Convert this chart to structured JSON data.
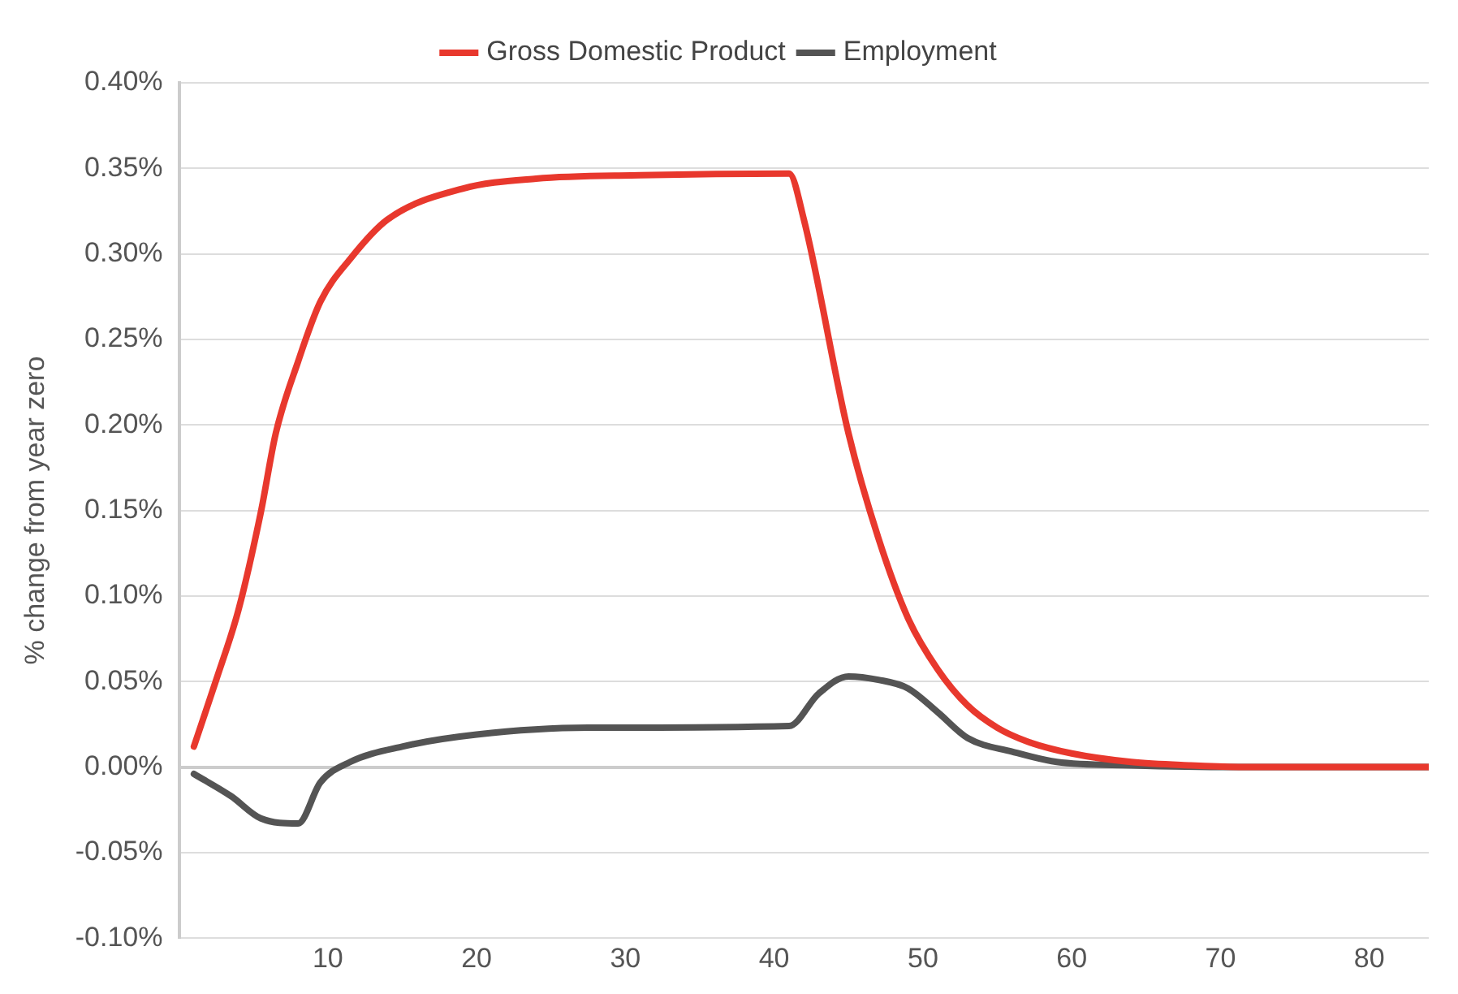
{
  "chart_data": {
    "type": "line",
    "ylabel": "% change from year zero",
    "xlim": [
      0,
      84
    ],
    "xticks": [
      10,
      20,
      30,
      40,
      50,
      60,
      70,
      80
    ],
    "ylim": [
      -0.1,
      0.4
    ],
    "yticks": [
      {
        "value": -0.1,
        "label": "-0.10%"
      },
      {
        "value": -0.05,
        "label": "-0.05%"
      },
      {
        "value": 0,
        "label": "0.00%"
      },
      {
        "value": 0.05,
        "label": "0.05%"
      },
      {
        "value": 0.1,
        "label": "0.10%"
      },
      {
        "value": 0.15,
        "label": "0.15%"
      },
      {
        "value": 0.2,
        "label": "0.20%"
      },
      {
        "value": 0.25,
        "label": "0.25%"
      },
      {
        "value": 0.3,
        "label": "0.30%"
      },
      {
        "value": 0.35,
        "label": "0.35%"
      },
      {
        "value": 0.4,
        "label": "0.40%"
      }
    ],
    "grid": "y",
    "legend": "top",
    "marker": "none",
    "line_style": "solid",
    "series": [
      {
        "name": "Gross Domestic Product",
        "color": "#e8382d",
        "x": [
          1,
          2.5,
          4,
          5.5,
          6.5,
          8,
          9.5,
          11.5,
          14,
          19,
          24,
          31,
          41,
          42,
          45,
          47,
          49,
          51,
          53,
          55,
          57,
          60,
          64,
          68,
          72,
          84
        ],
        "values": [
          0.012,
          0.051,
          0.092,
          0.149,
          0.195,
          0.237,
          0.272,
          0.297,
          0.32,
          0.338,
          0.344,
          0.346,
          0.347,
          0.32,
          0.195,
          0.134,
          0.087,
          0.057,
          0.036,
          0.023,
          0.015,
          0.008,
          0.003,
          0.001,
          0,
          0
        ]
      },
      {
        "name": "Employment",
        "color": "#545454",
        "x": [
          1,
          3.5,
          5.5,
          8,
          9.5,
          11.5,
          15,
          20,
          27.5,
          41,
          43,
          45,
          47,
          49,
          51,
          53,
          56,
          59,
          64,
          71,
          84
        ],
        "values": [
          -0.004,
          -0.017,
          -0.03,
          -0.033,
          -0.009,
          0.003,
          0.012,
          0.019,
          0.023,
          0.024,
          0.043,
          0.053,
          0.051,
          0.046,
          0.032,
          0.017,
          0.009,
          0.003,
          0.001,
          0,
          0
        ]
      }
    ]
  }
}
